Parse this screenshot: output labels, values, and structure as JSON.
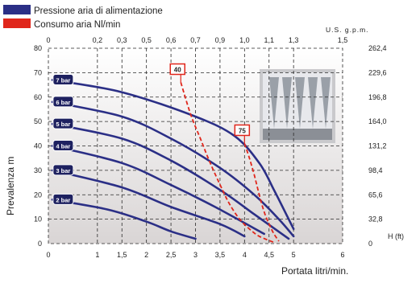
{
  "legend": [
    {
      "label": "Pressione aria di alimentazione",
      "color": "#2b2f86"
    },
    {
      "label": "Consumo aria Nl/min",
      "color": "#e0261b"
    }
  ],
  "chart_data": {
    "type": "line",
    "title": "",
    "xlabel": "Portata litri/min.",
    "ylabel": "Prevalenza m",
    "x_ticks": [
      0,
      1,
      1.5,
      2,
      2.5,
      3,
      3.5,
      4,
      4.5,
      5,
      6
    ],
    "xlim": [
      0,
      6
    ],
    "ylim": [
      0,
      80
    ],
    "y_ticks": [
      0,
      10,
      20,
      30,
      40,
      50,
      60,
      70,
      80
    ],
    "x2label": "U.S. g.p.m.",
    "x2_ticks": [
      "0",
      "0,2",
      "0,3",
      "0,5",
      "0,6",
      "0,7",
      "0,9",
      "1,0",
      "1,1",
      "1,3",
      "1,5"
    ],
    "y2label": "H (ft)",
    "y2_ticks": [
      "0",
      "32,8",
      "65,6",
      "98,4",
      "131,2",
      "164,0",
      "196,8",
      "229,6",
      "262,4"
    ],
    "grid": true,
    "series": [
      {
        "name": "7 bar",
        "color": "#2b2f86",
        "points": [
          [
            0.08,
            67
          ],
          [
            1.5,
            62
          ],
          [
            3,
            52
          ],
          [
            3.8,
            44
          ],
          [
            4.3,
            33
          ],
          [
            4.6,
            22
          ],
          [
            4.9,
            10
          ],
          [
            5.0,
            6
          ]
        ]
      },
      {
        "name": "6 bar",
        "color": "#2b2f86",
        "points": [
          [
            0.08,
            58
          ],
          [
            1.5,
            52
          ],
          [
            2.5,
            43
          ],
          [
            3.5,
            31
          ],
          [
            4.2,
            20
          ],
          [
            4.7,
            10
          ],
          [
            5.0,
            3
          ]
        ]
      },
      {
        "name": "5 bar",
        "color": "#2b2f86",
        "points": [
          [
            0.08,
            49
          ],
          [
            1.5,
            43
          ],
          [
            2.5,
            34
          ],
          [
            3.5,
            22
          ],
          [
            4.2,
            12
          ],
          [
            4.9,
            2
          ]
        ]
      },
      {
        "name": "4 bar",
        "color": "#2b2f86",
        "points": [
          [
            0.08,
            40
          ],
          [
            1.5,
            33
          ],
          [
            2.5,
            24
          ],
          [
            3.4,
            15
          ],
          [
            4.4,
            4
          ]
        ]
      },
      {
        "name": "3 bar",
        "color": "#2b2f86",
        "points": [
          [
            0.08,
            30
          ],
          [
            1.5,
            23
          ],
          [
            2.5,
            15
          ],
          [
            3.5,
            8
          ],
          [
            4.0,
            3
          ]
        ]
      },
      {
        "name": "2 bar",
        "color": "#2b2f86",
        "points": [
          [
            0.08,
            18
          ],
          [
            1.2,
            14
          ],
          [
            2.0,
            9
          ],
          [
            2.5,
            5
          ],
          [
            3.0,
            2
          ]
        ]
      }
    ],
    "consumption_lines": [
      {
        "label": "40",
        "color": "#e0261b",
        "points": [
          [
            2.7,
            66
          ],
          [
            2.9,
            53
          ],
          [
            3.1,
            43
          ],
          [
            3.3,
            33
          ],
          [
            3.55,
            22
          ],
          [
            3.7,
            16
          ],
          [
            3.9,
            10
          ],
          [
            4.1,
            6
          ],
          [
            4.3,
            3
          ],
          [
            4.6,
            0.5
          ]
        ]
      },
      {
        "label": "75",
        "color": "#e0261b",
        "points": [
          [
            4.0,
            41
          ],
          [
            4.1,
            35
          ],
          [
            4.2,
            28
          ],
          [
            4.3,
            20
          ],
          [
            4.4,
            13
          ],
          [
            4.5,
            8
          ],
          [
            4.6,
            4
          ],
          [
            4.7,
            1
          ]
        ]
      }
    ]
  }
}
